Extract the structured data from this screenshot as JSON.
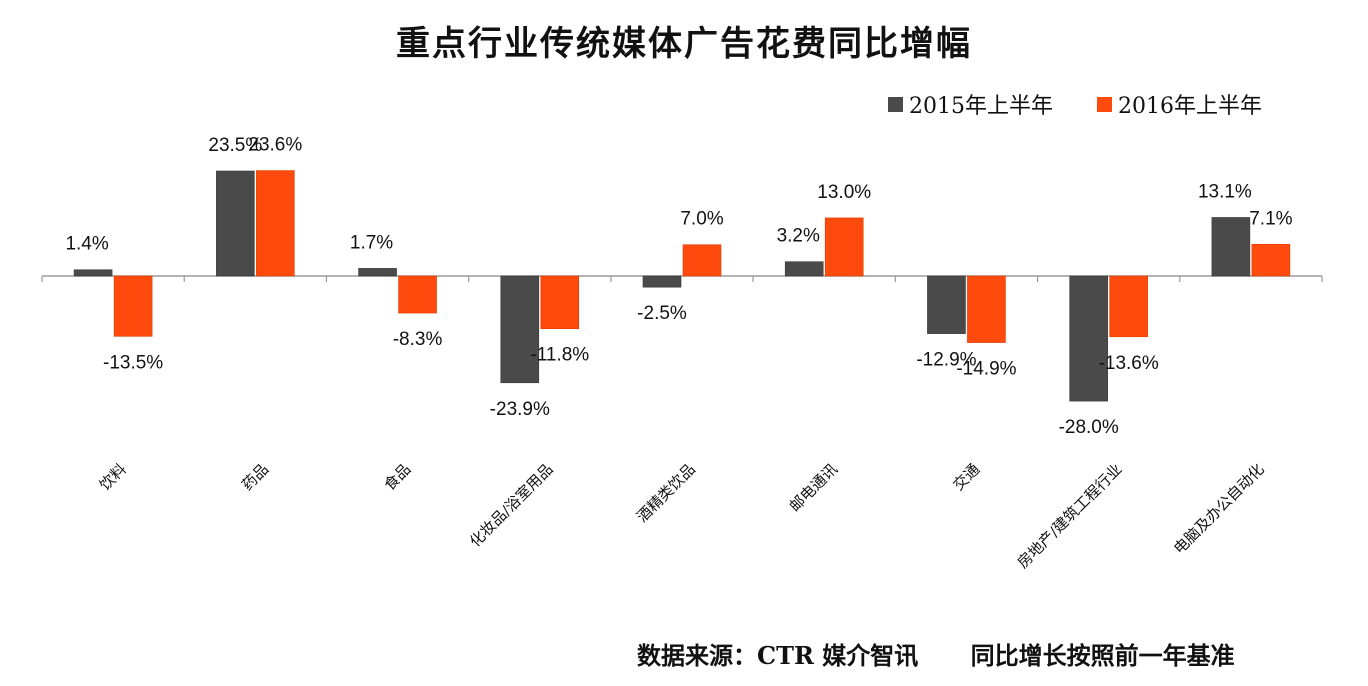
{
  "chart_data": {
    "type": "bar",
    "title": "重点行业传统媒体广告花费同比增幅",
    "categories": [
      "饮料",
      "药品",
      "食品",
      "化妆品/浴室用品",
      "酒精类饮品",
      "邮电通讯",
      "交通",
      "房地产/建筑工程行业",
      "电脑及办公自动化"
    ],
    "series": [
      {
        "name": "2015年上半年",
        "color": "#4a4a4a",
        "values": [
          1.4,
          23.5,
          1.7,
          -23.9,
          -2.5,
          3.2,
          -12.9,
          -28.0,
          13.1
        ]
      },
      {
        "name": "2016年上半年",
        "color": "#ff4a0d",
        "values": [
          -13.5,
          23.6,
          -8.3,
          -11.8,
          7.0,
          13.0,
          -14.9,
          -13.6,
          7.1
        ]
      }
    ],
    "data_labels": [
      [
        "1.4%",
        "23.5%",
        "1.7%",
        "-23.9%",
        "-2.5%",
        "3.2%",
        "-12.9%",
        "-28.0%",
        "13.1%"
      ],
      [
        "-13.5%",
        "23.6%",
        "-8.3%",
        "-11.8%",
        "7.0%",
        "13.0%",
        "-14.9%",
        "-13.6%",
        "7.1%"
      ]
    ],
    "ylim": [
      -30,
      30
    ],
    "xlabel": "",
    "ylabel": "",
    "grid": false,
    "legend_position": "top-right"
  },
  "footer": {
    "source": "数据来源：CTR 媒介智讯",
    "note": "同比增长按照前一年基准"
  }
}
